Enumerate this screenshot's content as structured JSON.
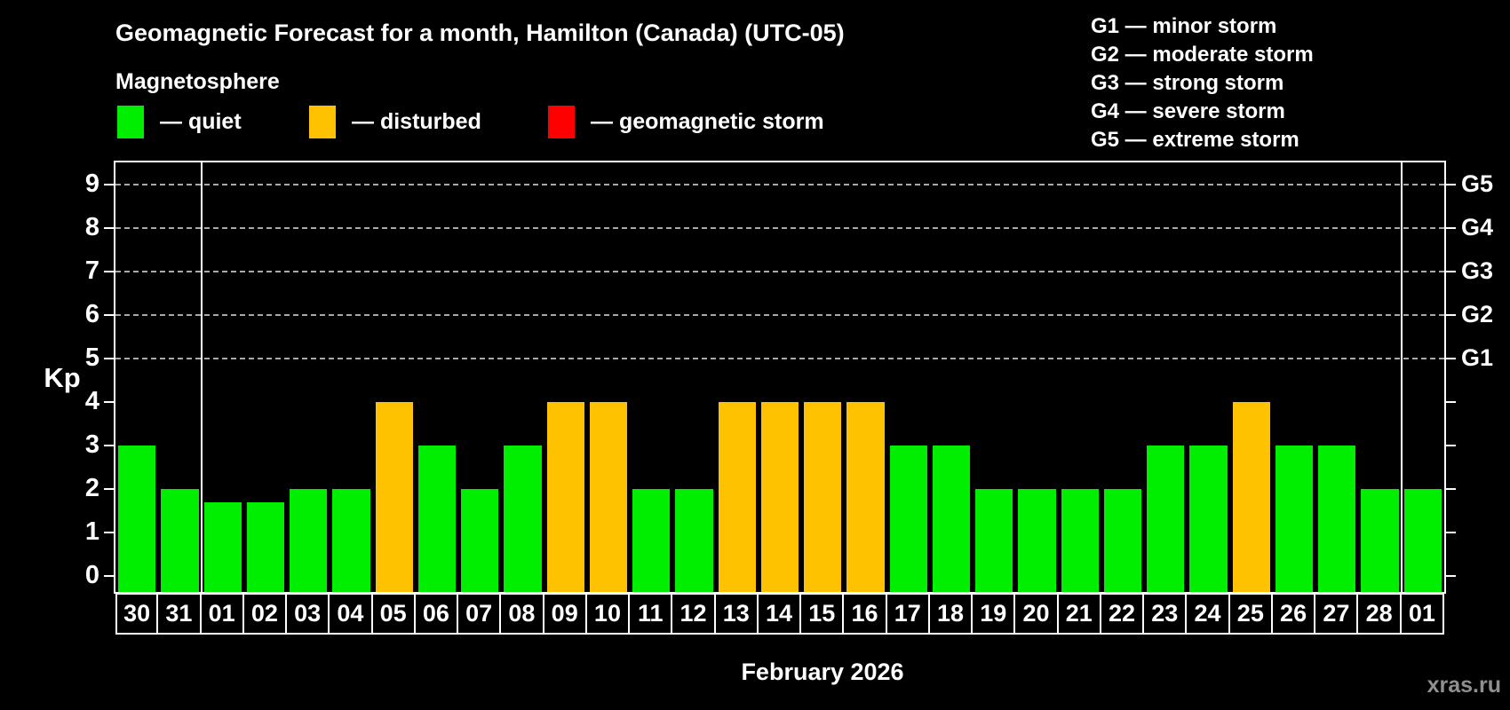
{
  "header": {
    "title": "Geomagnetic Forecast for a month, Hamilton (Canada) (UTC-05)",
    "subtitle": "Magnetosphere",
    "legend": [
      {
        "name": "quiet",
        "label": "— quiet",
        "color": "#00ee00"
      },
      {
        "name": "disturbed",
        "label": "— disturbed",
        "color": "#ffc200"
      },
      {
        "name": "storm",
        "label": "— geomagnetic storm",
        "color": "#ff0000"
      }
    ],
    "storm_scale": [
      {
        "label": "G1 — minor storm"
      },
      {
        "label": "G2 — moderate storm"
      },
      {
        "label": "G3 — strong storm"
      },
      {
        "label": "G4 — severe storm"
      },
      {
        "label": "G5 — extreme storm"
      }
    ]
  },
  "footer": {
    "caption": "February 2026",
    "watermark": "xras.ru"
  },
  "chart_data": {
    "type": "bar",
    "title": "Geomagnetic Forecast for a month, Hamilton (Canada) (UTC-05)",
    "xlabel": "February 2026",
    "ylabel": "Kp",
    "ylim": [
      0,
      9
    ],
    "yticks": [
      0,
      1,
      2,
      3,
      4,
      5,
      6,
      7,
      8,
      9
    ],
    "gridlines_at": [
      5,
      6,
      7,
      8,
      9
    ],
    "grid": "dashed",
    "legend_position": "top-left",
    "right_axis_labels": [
      {
        "kp": 5,
        "label": "G1"
      },
      {
        "kp": 6,
        "label": "G2"
      },
      {
        "kp": 7,
        "label": "G3"
      },
      {
        "kp": 8,
        "label": "G4"
      },
      {
        "kp": 9,
        "label": "G5"
      }
    ],
    "categories": [
      "30",
      "31",
      "01",
      "02",
      "03",
      "04",
      "05",
      "06",
      "07",
      "08",
      "09",
      "10",
      "11",
      "12",
      "13",
      "14",
      "15",
      "16",
      "17",
      "18",
      "19",
      "20",
      "21",
      "22",
      "23",
      "24",
      "25",
      "26",
      "27",
      "28",
      "01"
    ],
    "values": [
      3,
      2,
      1.7,
      1.7,
      2,
      2,
      4,
      3,
      2,
      3,
      4,
      4,
      2,
      2,
      4,
      4,
      4,
      4,
      3,
      3,
      2,
      2,
      2,
      2,
      3,
      3,
      4,
      3,
      3,
      2,
      2
    ],
    "statuses": [
      "quiet",
      "quiet",
      "quiet",
      "quiet",
      "quiet",
      "quiet",
      "disturbed",
      "quiet",
      "quiet",
      "quiet",
      "disturbed",
      "disturbed",
      "quiet",
      "quiet",
      "disturbed",
      "disturbed",
      "disturbed",
      "disturbed",
      "quiet",
      "quiet",
      "quiet",
      "quiet",
      "quiet",
      "quiet",
      "quiet",
      "quiet",
      "disturbed",
      "quiet",
      "quiet",
      "quiet",
      "quiet"
    ],
    "status_colors": {
      "quiet": "#00ee00",
      "disturbed": "#ffc200",
      "storm": "#ff0000"
    },
    "month_separators_after_index": [
      1,
      29
    ]
  }
}
